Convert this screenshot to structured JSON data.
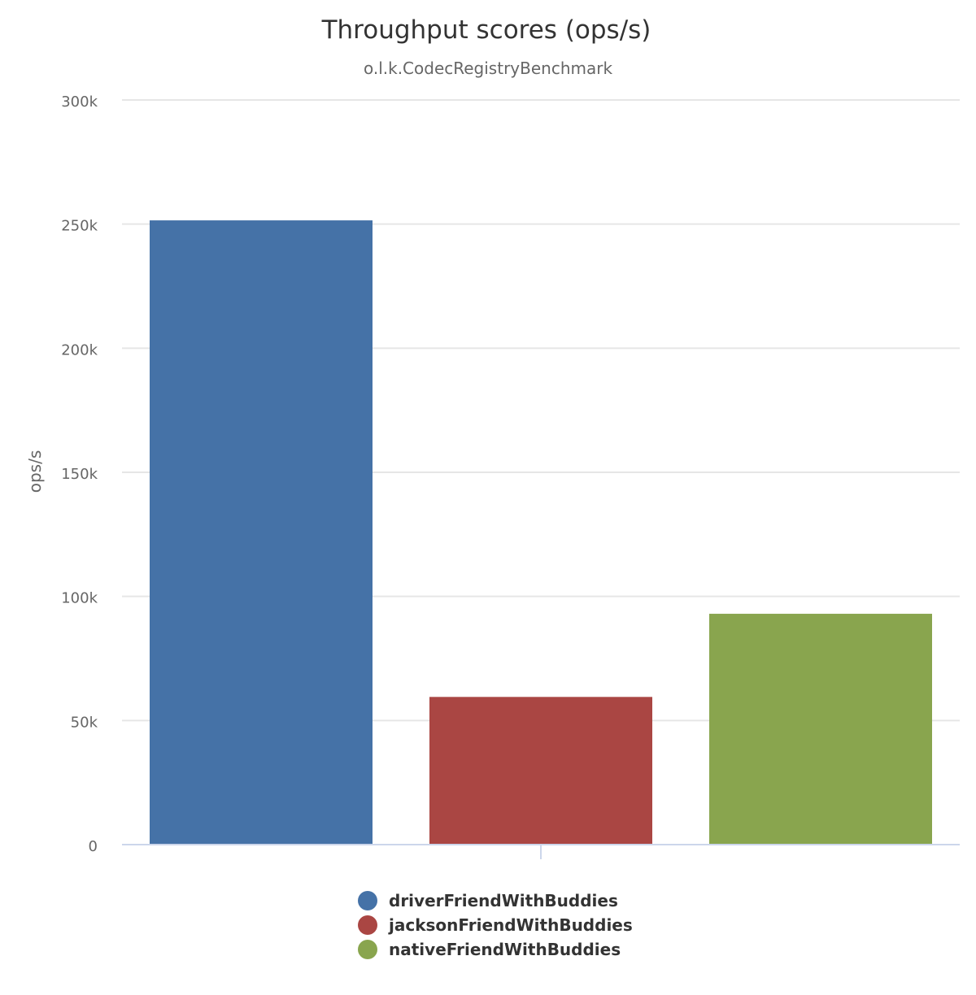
{
  "chart_data": {
    "type": "bar",
    "title": "Throughput scores (ops/s)",
    "subtitle": "o.l.k.CodecRegistryBenchmark",
    "ylabel": "ops/s",
    "xlabel": "",
    "ylim": [
      0,
      300000
    ],
    "yticks": [
      0,
      50000,
      100000,
      150000,
      200000,
      250000,
      300000
    ],
    "ytick_labels": [
      "0",
      "50k",
      "100k",
      "150k",
      "200k",
      "250k",
      "300k"
    ],
    "grid": true,
    "legend_position": "bottom-center",
    "series": [
      {
        "name": "driverFriendWithBuddies",
        "value": 251500,
        "color": "#4572a7"
      },
      {
        "name": "jacksonFriendWithBuddies",
        "value": 59500,
        "color": "#aa4643"
      },
      {
        "name": "nativeFriendWithBuddies",
        "value": 93000,
        "color": "#89a54e"
      }
    ]
  }
}
